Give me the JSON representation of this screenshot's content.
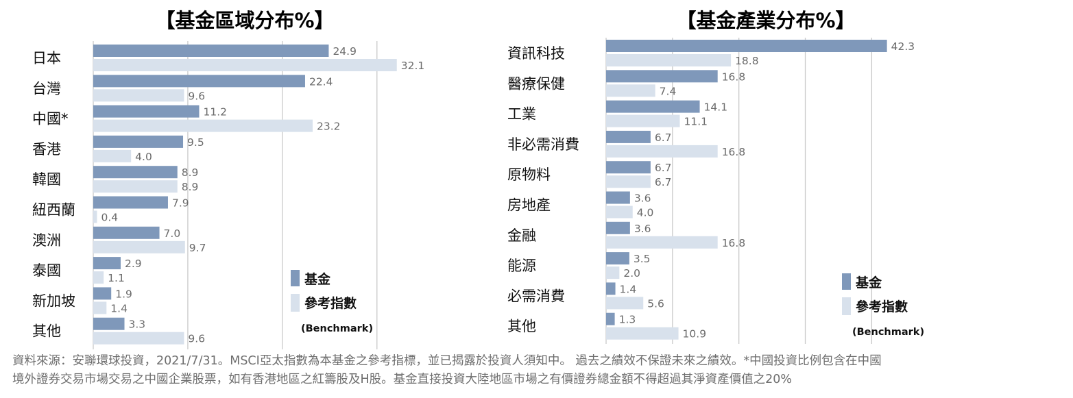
{
  "colors": {
    "fund": "#7f98ba",
    "benchmark": "#d8e1ec",
    "grid": "#c9c9c9",
    "value_text": "#6b6b6b",
    "label_text": "#111111"
  },
  "chart_data": [
    {
      "type": "bar",
      "title": "【基金區域分布%】",
      "categories": [
        "日本",
        "台灣",
        "中國*",
        "香港",
        "韓國",
        "紐西蘭",
        "澳洲",
        "泰國",
        "新加坡",
        "其他"
      ],
      "series": [
        {
          "name": "基金",
          "values": [
            24.9,
            22.4,
            11.2,
            9.5,
            8.9,
            7.9,
            7.0,
            2.9,
            1.9,
            3.3
          ],
          "labels": [
            "24.9",
            "22.4",
            "11.2",
            "9.5",
            "8.9",
            "7.9",
            "7.0",
            "2.9",
            "1.9",
            "3.3"
          ]
        },
        {
          "name": "參考指數",
          "values": [
            32.1,
            9.6,
            23.2,
            4.0,
            8.9,
            0.4,
            9.7,
            1.1,
            1.4,
            9.6
          ],
          "labels": [
            "32.1",
            "9.6",
            "23.2",
            "4.0",
            "8.9",
            "0.4",
            "9.7",
            "1.1",
            "1.4",
            "9.6"
          ]
        }
      ],
      "legend": {
        "fund": "基金",
        "benchmark": "參考指數",
        "benchmark_en": "(Benchmark)"
      },
      "xlim": [
        0,
        37.7
      ],
      "grid": true,
      "legend_position": "bottom-right"
    },
    {
      "type": "bar",
      "title": "【基金產業分布%】",
      "categories": [
        "資訊科技",
        "醫療保健",
        "工業",
        "非必需消費",
        "原物料",
        "房地產",
        "金融",
        "能源",
        "必需消費",
        "其他"
      ],
      "series": [
        {
          "name": "基金",
          "values": [
            42.3,
            16.8,
            14.1,
            6.7,
            6.7,
            3.6,
            3.6,
            3.5,
            1.4,
            1.3
          ],
          "labels": [
            "42.3",
            "16.8",
            "14.1",
            "6.7",
            "6.7",
            "3.6",
            "3.6",
            "3.5",
            "1.4",
            "1.3"
          ]
        },
        {
          "name": "參考指數",
          "values": [
            18.8,
            7.4,
            11.1,
            16.8,
            6.7,
            4.0,
            16.8,
            2.0,
            5.6,
            10.9
          ],
          "labels": [
            "18.8",
            "7.4",
            "11.1",
            "16.8",
            "6.7",
            "4.0",
            "16.8",
            "2.0",
            "5.6",
            "10.9"
          ]
        }
      ],
      "legend": {
        "fund": "基金",
        "benchmark": "參考指數",
        "benchmark_en": "(Benchmark)"
      },
      "xlim": [
        0,
        47.5
      ],
      "grid": true,
      "legend_position": "bottom-right"
    }
  ],
  "footer": {
    "line1": "資料來源：安聯環球投資，2021/7/31。MSCI亞太指數為本基金之參考指標，並已揭露於投資人須知中。 過去之績效不保證未來之績效。*中國投資比例包含在中國",
    "line2": "境外證券交易市場交易之中國企業股票，如有香港地區之紅籌股及H股。基金直接投資大陸地區市場之有價證券總金額不得超過其淨資產價值之20%"
  }
}
